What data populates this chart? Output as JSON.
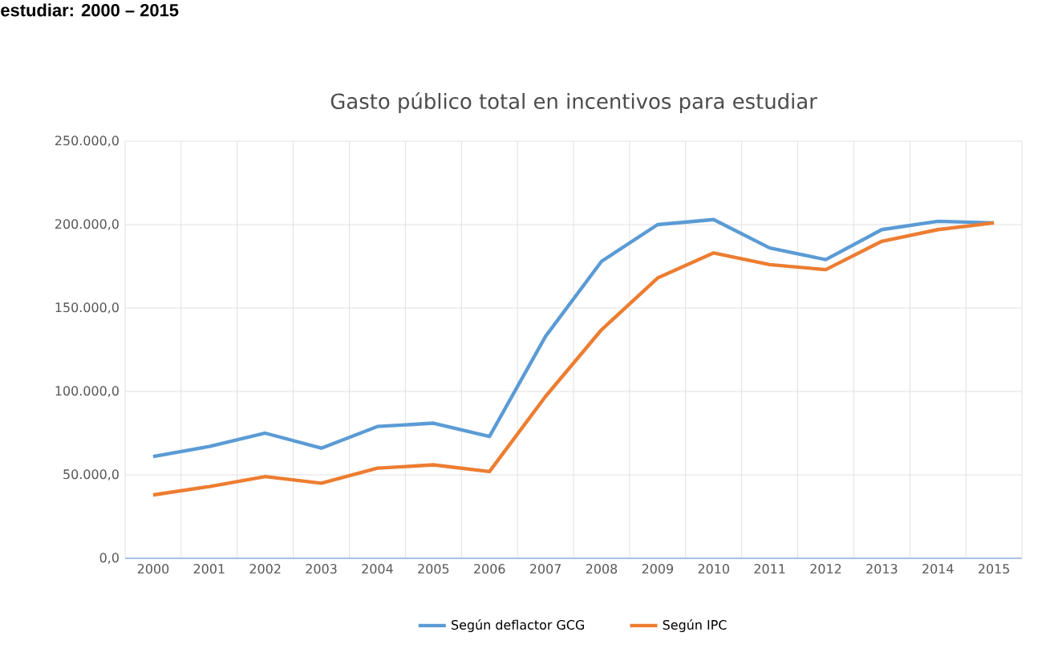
{
  "chart_data": {
    "type": "line",
    "title": "Gasto público total en incentivos para estudiar",
    "annotations": [
      "estudiar: 2000 – 2015"
    ],
    "categories": [
      "2000",
      "2001",
      "2002",
      "2003",
      "2004",
      "2005",
      "2006",
      "2007",
      "2008",
      "2009",
      "2010",
      "2011",
      "2012",
      "2013",
      "2014",
      "2015"
    ],
    "series": [
      {
        "name": "Según deflactor GCG",
        "color": "#5b9bd5",
        "values": [
          61000,
          67000,
          75000,
          66000,
          79000,
          81000,
          73000,
          133000,
          178000,
          200000,
          203000,
          186000,
          179000,
          197000,
          202000,
          201000
        ]
      },
      {
        "name": "Según IPC",
        "color": "#ed7d31",
        "values": [
          38000,
          43000,
          49000,
          45000,
          54000,
          56000,
          52000,
          97000,
          137000,
          168000,
          183000,
          176000,
          173000,
          190000,
          197000,
          201000
        ]
      }
    ],
    "ylim": [
      0,
      250000
    ],
    "yticks": [
      {
        "value": 0,
        "label": "0,0"
      },
      {
        "value": 50000,
        "label": "50.000,0"
      },
      {
        "value": 100000,
        "label": "100.000,0"
      },
      {
        "value": 150000,
        "label": "150.000,0"
      },
      {
        "value": 200000,
        "label": "200.000,0"
      },
      {
        "value": 250000,
        "label": "250.000,0"
      }
    ],
    "grid": true,
    "legend": "bottom",
    "marker": "none",
    "line_style": "solid"
  }
}
